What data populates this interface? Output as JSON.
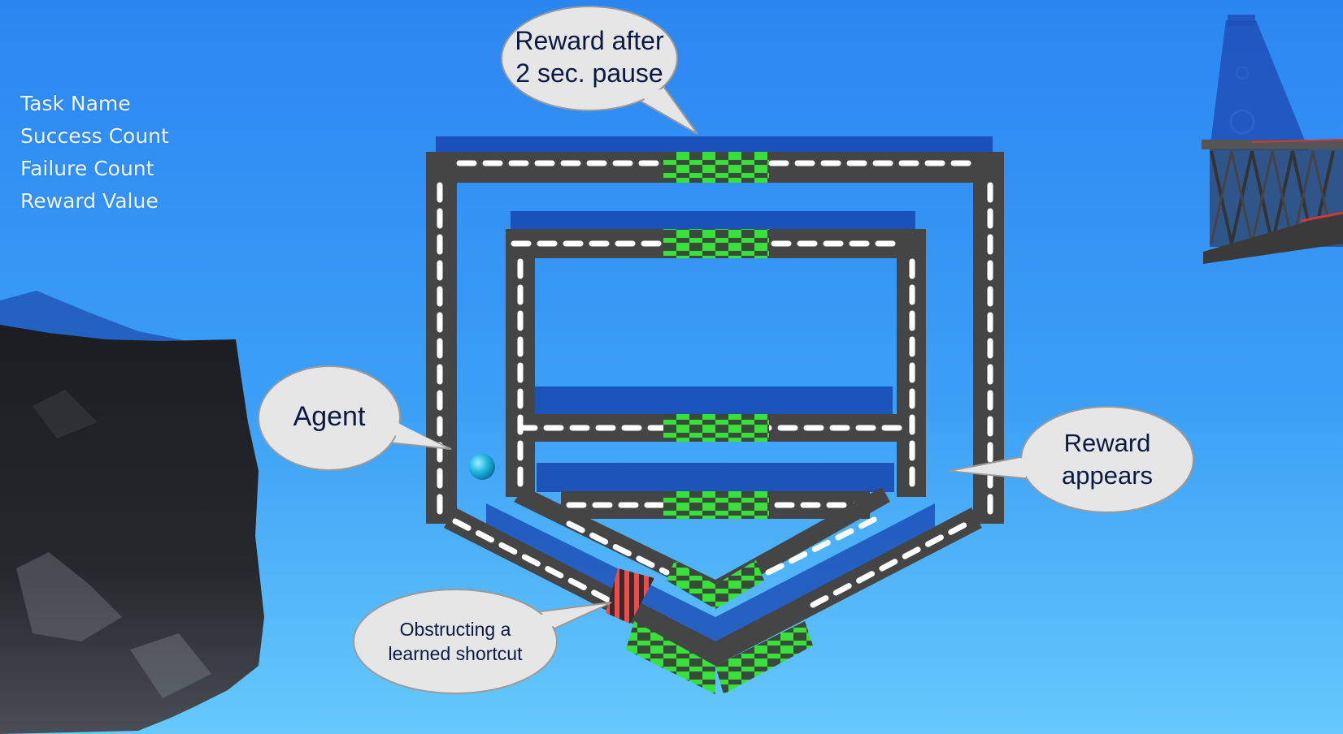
{
  "hud": {
    "task_name_label": "Task Name",
    "success_count_label": "Success Count",
    "failure_count_label": "Failure Count",
    "reward_value_label": "Reward Value"
  },
  "annotations": {
    "reward_after_line1": "Reward after",
    "reward_after_line2": "2 sec. pause",
    "agent": "Agent",
    "reward_appears_line1": "Reward",
    "reward_appears_line2": "appears",
    "obstructing_line1": "Obstructing a",
    "obstructing_line2": "learned shortcut"
  },
  "colors": {
    "sky_top": "#2a86f2",
    "sky_bottom": "#62c6fb",
    "track": "#454545",
    "lane_dash": "#ffffff",
    "reward_green": "#38e03a",
    "obstruction_red": "#f04a4a",
    "agent_sphere": "#22b8e0",
    "bubble_fill": "#e6e6e6",
    "annotation_text": "#0b1a45",
    "hud_text": "#eef5ff"
  }
}
